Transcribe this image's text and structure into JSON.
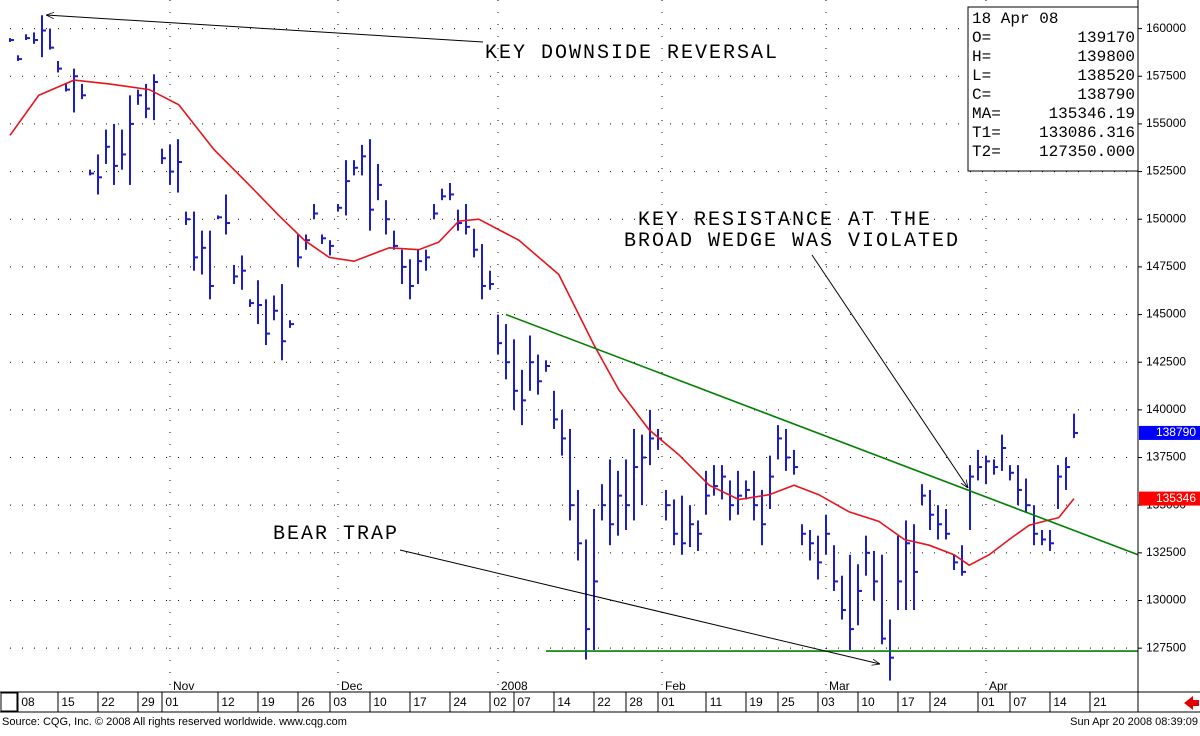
{
  "chart_data": {
    "type": "ohlc",
    "xlim": [
      -2,
      139
    ],
    "ylim": [
      125200,
      161500
    ],
    "yticks": [
      127500,
      130000,
      132500,
      135000,
      137500,
      140000,
      142500,
      145000,
      147500,
      150000,
      152500,
      155000,
      157500,
      160000
    ],
    "xticks": [
      {
        "value": 0,
        "label": "08"
      },
      {
        "value": 5,
        "label": "15"
      },
      {
        "value": 10,
        "label": "22"
      },
      {
        "value": 15,
        "label": "29"
      },
      {
        "value": 18,
        "label": "01"
      },
      {
        "value": 25,
        "label": "12"
      },
      {
        "value": 30,
        "label": "19"
      },
      {
        "value": 35,
        "label": "26"
      },
      {
        "value": 39,
        "label": "03"
      },
      {
        "value": 44,
        "label": "10"
      },
      {
        "value": 49,
        "label": "17"
      },
      {
        "value": 54,
        "label": "24"
      },
      {
        "value": 59,
        "label": "02"
      },
      {
        "value": 62,
        "label": "07"
      },
      {
        "value": 67,
        "label": "14"
      },
      {
        "value": 72,
        "label": "22"
      },
      {
        "value": 76,
        "label": "28"
      },
      {
        "value": 80,
        "label": "01"
      },
      {
        "value": 86,
        "label": "11"
      },
      {
        "value": 91,
        "label": "19"
      },
      {
        "value": 95,
        "label": "25"
      },
      {
        "value": 100,
        "label": "03"
      },
      {
        "value": 105,
        "label": "10"
      },
      {
        "value": 110,
        "label": "17"
      },
      {
        "value": 114,
        "label": "24"
      },
      {
        "value": 120,
        "label": "01"
      },
      {
        "value": 124,
        "label": "07"
      },
      {
        "value": 129,
        "label": "14"
      },
      {
        "value": 134,
        "label": "21"
      }
    ],
    "month_ticks": [
      {
        "value": 18,
        "label": "Nov"
      },
      {
        "value": 39,
        "label": "Dec"
      },
      {
        "value": 59,
        "label": "2008"
      },
      {
        "value": 79.5,
        "label": "Feb"
      },
      {
        "value": 100,
        "label": "Mar"
      },
      {
        "value": 120,
        "label": "Apr"
      }
    ],
    "grid": true,
    "bars": {
      "color": "#1c1cc8",
      "x": [
        -2,
        -1,
        0,
        1,
        2,
        3,
        4,
        5,
        6,
        7,
        8,
        9,
        10,
        11,
        12,
        13,
        14,
        15,
        16,
        17,
        18,
        19,
        20,
        21,
        22,
        23,
        24,
        25,
        26,
        27,
        28,
        29,
        30,
        31,
        32,
        33,
        34,
        35,
        36,
        37,
        38,
        39,
        40,
        41,
        42,
        43,
        44,
        45,
        46,
        47,
        48,
        49,
        50,
        51,
        52,
        53,
        54,
        55,
        56,
        57,
        58,
        59,
        60,
        61,
        62,
        63,
        64,
        65,
        66,
        67,
        68,
        69,
        70,
        71,
        72,
        73,
        74,
        75,
        76,
        77,
        78,
        79,
        80,
        81,
        82,
        83,
        84,
        85,
        86,
        87,
        88,
        89,
        90,
        91,
        92,
        93,
        94,
        95,
        96,
        97,
        98,
        99,
        100,
        101,
        102,
        103,
        104,
        105,
        106,
        107,
        108,
        109,
        110,
        111,
        112,
        113,
        114,
        115,
        116,
        117,
        118,
        119,
        120,
        121,
        122,
        123,
        124,
        125,
        126,
        127,
        128,
        129,
        130,
        131
      ],
      "high": [
        159500,
        158600,
        159700,
        159800,
        160700,
        160000,
        158300,
        157100,
        157900,
        157100,
        152600,
        153400,
        154700,
        155000,
        154700,
        156500,
        156800,
        157100,
        157600,
        153700,
        153900,
        154200,
        150400,
        150400,
        149400,
        149400,
        150200,
        151300,
        147600,
        148100,
        145800,
        146800,
        145800,
        146000,
        146600,
        144700,
        149200,
        149200,
        150800,
        149200,
        148900,
        150800,
        153100,
        153100,
        153900,
        154200,
        152900,
        151000,
        149400,
        148400,
        147900,
        148400,
        148400,
        150800,
        151600,
        151900,
        150500,
        150800,
        149500,
        148700,
        147300,
        145000,
        144500,
        143700,
        142100,
        143900,
        142900,
        142600,
        141000,
        140000,
        139000,
        135800,
        133200,
        134800,
        136100,
        137400,
        136800,
        137400,
        139000,
        138700,
        140000,
        139000,
        135800,
        135300,
        135500,
        135000,
        134200,
        136800,
        137100,
        137100,
        136300,
        136800,
        136300,
        136800,
        135800,
        137600,
        139200,
        139000,
        137900,
        134000,
        133700,
        133400,
        134500,
        132900,
        131300,
        132400,
        131900,
        133400,
        132600,
        132400,
        129000,
        133400,
        134200,
        134000,
        136100,
        135800,
        135000,
        134800,
        132400,
        132900,
        137100,
        137900,
        137600,
        137400,
        138700,
        137100,
        137100,
        136400,
        135000,
        133700,
        133700,
        137100,
        137500,
        139800
      ],
      "low": [
        159300,
        158300,
        159400,
        159200,
        158500,
        158900,
        157700,
        156700,
        155600,
        156300,
        152300,
        151300,
        152900,
        151800,
        152600,
        151800,
        156000,
        155300,
        155200,
        152900,
        151800,
        151400,
        149700,
        147300,
        147100,
        145800,
        150000,
        149200,
        146600,
        146300,
        145400,
        144500,
        143400,
        144700,
        142600,
        144300,
        147500,
        148400,
        150000,
        148700,
        148100,
        150400,
        150200,
        152300,
        152300,
        149400,
        151000,
        149200,
        148400,
        146600,
        145800,
        146600,
        147300,
        150000,
        151000,
        151000,
        149400,
        149200,
        148000,
        145800,
        146300,
        142900,
        141600,
        140000,
        139200,
        141000,
        140800,
        142000,
        139000,
        137600,
        134200,
        132100,
        126900,
        127400,
        134200,
        132900,
        133400,
        133700,
        134200,
        135000,
        137100,
        137900,
        134200,
        132900,
        132400,
        132800,
        132600,
        134500,
        135500,
        135300,
        134200,
        134500,
        135300,
        134200,
        132900,
        134800,
        137400,
        136800,
        136600,
        132900,
        132100,
        131100,
        132400,
        130500,
        129000,
        127400,
        128700,
        131300,
        130000,
        127700,
        125800,
        129500,
        129500,
        129500,
        135000,
        133700,
        133200,
        133200,
        131600,
        131300,
        133700,
        136300,
        136100,
        136600,
        136800,
        136300,
        135000,
        134600,
        132900,
        132900,
        132600,
        134800,
        135800,
        138520
      ],
      "close": [
        159400,
        158400,
        159500,
        159400,
        159900,
        159000,
        157900,
        156800,
        157500,
        156500,
        152400,
        152200,
        153800,
        152800,
        153400,
        155000,
        156500,
        155800,
        157200,
        153200,
        152500,
        153000,
        150000,
        148000,
        148500,
        146500,
        150100,
        149800,
        147000,
        147300,
        145600,
        145500,
        144000,
        145200,
        143600,
        144500,
        148000,
        148900,
        150300,
        149000,
        148600,
        150600,
        152000,
        152700,
        153300,
        150500,
        151800,
        150000,
        148600,
        147500,
        146500,
        147800,
        148000,
        150300,
        151200,
        151300,
        149800,
        149600,
        148400,
        146500,
        146600,
        143500,
        142500,
        141000,
        140500,
        142500,
        141500,
        142300,
        139500,
        138500,
        135000,
        133000,
        128500,
        131000,
        135000,
        134000,
        135500,
        135000,
        137000,
        137500,
        138500,
        138500,
        135000,
        133500,
        133000,
        134000,
        133500,
        135500,
        136000,
        136500,
        135000,
        135500,
        135800,
        135000,
        134000,
        136500,
        138500,
        137500,
        137000,
        133500,
        133000,
        132000,
        133500,
        131000,
        129500,
        128500,
        130500,
        132500,
        131000,
        128000,
        127000,
        131000,
        133000,
        131500,
        135500,
        134500,
        134000,
        133500,
        132000,
        131500,
        136500,
        137000,
        137300,
        137000,
        138000,
        136700,
        135800,
        135000,
        133500,
        133200,
        133000,
        136500,
        137000,
        138790
      ]
    },
    "moving_average": {
      "color": "#e8141c",
      "x": [
        -2,
        1.6,
        6,
        10.4,
        15.4,
        19.1,
        23.5,
        27.9,
        31.6,
        34.8,
        37.9,
        41,
        45.4,
        49.1,
        51.6,
        54.1,
        56.6,
        61.6,
        66.6,
        71,
        74.1,
        77.9,
        81.6,
        85.4,
        89.1,
        92.9,
        96,
        99.1,
        102.9,
        106.6,
        109.8,
        112.9,
        116,
        117.9,
        120.4,
        122.9,
        125.4,
        127.2,
        129.1,
        131
      ],
      "values": [
        154400,
        156500,
        157300,
        157100,
        156800,
        156000,
        153650,
        151800,
        150200,
        148900,
        148000,
        147800,
        148500,
        148400,
        148800,
        149900,
        150000,
        148900,
        147100,
        143400,
        141050,
        138950,
        137650,
        136050,
        135300,
        135550,
        136050,
        135550,
        134650,
        134150,
        133200,
        132900,
        132400,
        131850,
        132400,
        133200,
        133950,
        134150,
        134350,
        135346.19
      ]
    },
    "trendlines": [
      {
        "color": "#008000",
        "x": [
          60,
          139
        ],
        "values": [
          145000,
          132400
        ]
      },
      {
        "color": "#008000",
        "x": [
          65,
          139
        ],
        "values": [
          127350,
          127350
        ]
      }
    ],
    "price_tags": {
      "values": [
        138790,
        135346
      ],
      "colors": [
        "#0000ff",
        "#ff0000"
      ]
    },
    "annotations": [
      "KEY DOWNSIDE REVERSAL",
      "KEY RESISTANCE AT THE",
      "BROAD WEDGE WAS VIOLATED",
      "BEAR TRAP"
    ],
    "info_box": {
      "date": "18 Apr 08",
      "labels": [
        "O=",
        "H=",
        "L=",
        "C=",
        "MA=",
        "T1=",
        "T2="
      ],
      "values": [
        139170,
        139800,
        138520,
        138790,
        135346.19,
        133086.316,
        127350
      ],
      "value_labels": [
        "139170",
        "139800",
        "138520",
        "138790",
        "135346.19",
        "133086.316",
        "127350.000"
      ]
    }
  },
  "footer": {
    "source": "Source: CQG, Inc. © 2008 All rights reserved worldwide. www.cqg.com",
    "timestamp": "Sun Apr 20 2008 08:39:09"
  }
}
